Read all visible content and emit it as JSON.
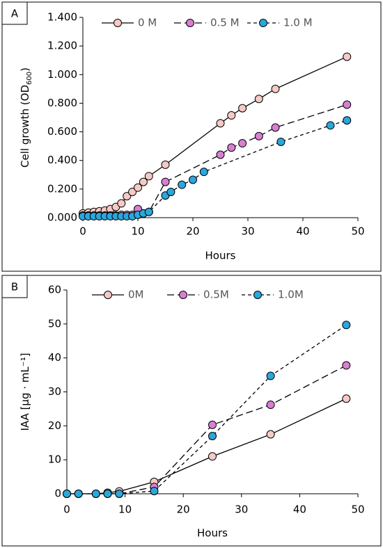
{
  "chart_data": [
    {
      "type": "line",
      "panel_label": "A",
      "x_label": "Hours",
      "y_label": [
        "Cell growth (OD",
        "600",
        ")"
      ],
      "xlim": [
        0,
        50
      ],
      "xticks": [
        0,
        10,
        20,
        30,
        40,
        50
      ],
      "ylim": [
        0,
        1.4
      ],
      "yticks": [
        {
          "value": 0,
          "label": "0.000"
        },
        {
          "value": 0.2,
          "label": "0.200"
        },
        {
          "value": 0.4,
          "label": "0.400"
        },
        {
          "value": 0.6,
          "label": "0.600"
        },
        {
          "value": 0.8,
          "label": "0.800"
        },
        {
          "value": 1.0,
          "label": "1.000"
        },
        {
          "value": 1.2,
          "label": "1.200"
        },
        {
          "value": 1.4,
          "label": "1.400"
        }
      ],
      "legend": "top",
      "series": [
        {
          "name": "0 M",
          "color": "#f6c9c4",
          "dash": "solid",
          "x": [
            0,
            1,
            2,
            3,
            4,
            5,
            6,
            7,
            8,
            9,
            10,
            11,
            12,
            15,
            25,
            27,
            29,
            32,
            35,
            48
          ],
          "values": [
            0.03,
            0.035,
            0.04,
            0.045,
            0.05,
            0.06,
            0.075,
            0.1,
            0.15,
            0.18,
            0.21,
            0.25,
            0.29,
            0.37,
            0.66,
            0.715,
            0.765,
            0.83,
            0.9,
            1.125
          ],
          "errors": [
            0.02,
            0.02,
            0.02,
            0.02,
            0.02,
            0.02,
            0.02,
            0.02,
            0.02,
            0.02,
            0.02,
            0.02,
            0.02,
            0.02,
            0.02,
            0.02,
            0.02,
            0.02,
            0.02,
            0.02
          ]
        },
        {
          "name": "0.5 M",
          "color": "#d97fd2",
          "dash": "long",
          "x": [
            0,
            1,
            2,
            3,
            4,
            5,
            6,
            7,
            8,
            9,
            10,
            11,
            12,
            15,
            25,
            27,
            29,
            32,
            35,
            48
          ],
          "values": [
            0.015,
            0.015,
            0.015,
            0.015,
            0.015,
            0.015,
            0.015,
            0.02,
            0.02,
            0.02,
            0.06,
            0.03,
            0.04,
            0.25,
            0.44,
            0.49,
            0.52,
            0.57,
            0.63,
            0.79
          ],
          "errors": [
            0.01,
            0.01,
            0.01,
            0.01,
            0.01,
            0.01,
            0.01,
            0.01,
            0.01,
            0.01,
            0.02,
            0.01,
            0.01,
            0.02,
            0.02,
            0.02,
            0.02,
            0.02,
            0.02,
            0.02
          ]
        },
        {
          "name": "1.0 M",
          "color": "#2aa7dd",
          "dash": "short",
          "x": [
            0,
            1,
            2,
            3,
            4,
            5,
            6,
            7,
            8,
            9,
            10,
            11,
            12,
            15,
            16,
            18,
            20,
            22,
            36,
            45,
            48
          ],
          "values": [
            0.01,
            0.01,
            0.01,
            0.01,
            0.01,
            0.01,
            0.01,
            0.01,
            0.01,
            0.01,
            0.02,
            0.03,
            0.04,
            0.155,
            0.18,
            0.23,
            0.265,
            0.32,
            0.53,
            0.645,
            0.68
          ],
          "errors": [
            0.01,
            0.01,
            0.01,
            0.01,
            0.01,
            0.01,
            0.01,
            0.01,
            0.01,
            0.01,
            0.01,
            0.01,
            0.01,
            0.02,
            0.02,
            0.02,
            0.02,
            0.02,
            0.02,
            0.02,
            0.02
          ]
        }
      ]
    },
    {
      "type": "line",
      "panel_label": "B",
      "x_label": "Hours",
      "y_label": [
        "IAA [μg · mL⁻¹]"
      ],
      "xlim": [
        0,
        50
      ],
      "xticks": [
        0,
        10,
        20,
        30,
        40,
        50
      ],
      "ylim": [
        0,
        60
      ],
      "yticks": [
        0,
        10,
        20,
        30,
        40,
        50,
        60
      ],
      "legend": "top",
      "series": [
        {
          "name": "0M",
          "color": "#f6c9c4",
          "dash": "solid",
          "x": [
            0,
            2,
            5,
            7,
            9,
            15,
            25,
            35,
            48
          ],
          "values": [
            0,
            0,
            0,
            0.3,
            0.7,
            3.5,
            11,
            17.5,
            28
          ],
          "errors": [
            0.8,
            0.8,
            0.8,
            0.8,
            0.8,
            0.8,
            1,
            1,
            1
          ]
        },
        {
          "name": "0.5M",
          "color": "#d97fd2",
          "dash": "long",
          "x": [
            0,
            2,
            5,
            7,
            9,
            15,
            25,
            35,
            48
          ],
          "values": [
            0,
            0,
            0,
            0,
            0,
            2,
            20.3,
            26.2,
            37.8
          ],
          "errors": [
            0.8,
            0.8,
            0.8,
            0.8,
            0.8,
            0.8,
            1,
            1,
            1
          ]
        },
        {
          "name": "1.0M",
          "color": "#2aa7dd",
          "dash": "short",
          "x": [
            0,
            2,
            5,
            7,
            9,
            15,
            25,
            35,
            48
          ],
          "values": [
            0,
            0,
            0,
            0,
            0,
            0.8,
            17,
            34.7,
            49.7
          ],
          "errors": [
            0.8,
            0.8,
            0.8,
            0.8,
            0.8,
            0.8,
            1,
            1,
            1
          ]
        }
      ]
    }
  ]
}
